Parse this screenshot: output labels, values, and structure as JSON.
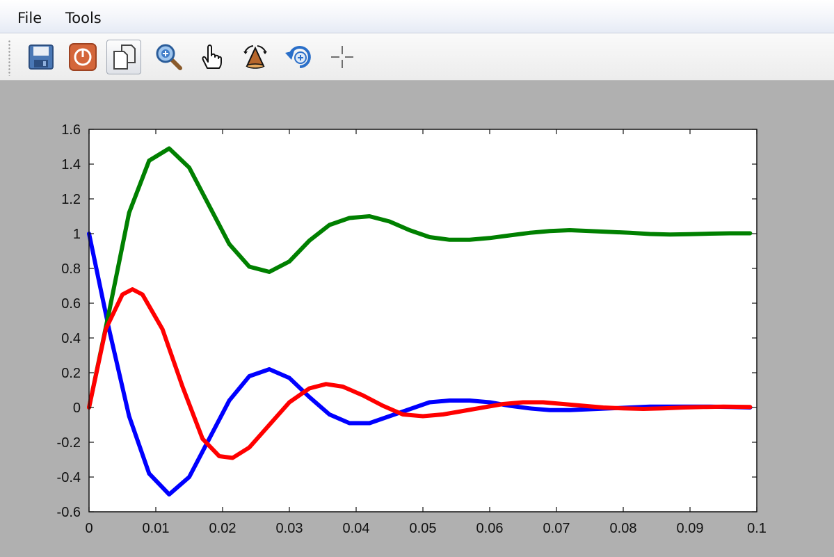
{
  "menu": {
    "file": "File",
    "tools": "Tools"
  },
  "toolbar": [
    {
      "name": "save-icon",
      "active": false
    },
    {
      "name": "power-icon",
      "active": false
    },
    {
      "name": "copy-icon",
      "active": true
    },
    {
      "name": "zoom-icon",
      "active": false
    },
    {
      "name": "pan-hand-icon",
      "active": false
    },
    {
      "name": "rotate-3d-icon",
      "active": false
    },
    {
      "name": "undo-zoom-icon",
      "active": false
    },
    {
      "name": "datatip-crosshair-icon",
      "active": false
    }
  ],
  "chart_data": {
    "type": "line",
    "title": "",
    "xlabel": "",
    "ylabel": "",
    "xlim": [
      0,
      0.1
    ],
    "ylim": [
      -0.6,
      1.6
    ],
    "grid": false,
    "x_ticks": [
      "0",
      "0.01",
      "0.02",
      "0.03",
      "0.04",
      "0.05",
      "0.06",
      "0.07",
      "0.08",
      "0.09",
      "0.1"
    ],
    "y_ticks": [
      "-0.6",
      "-0.4",
      "-0.2",
      "0",
      "0.2",
      "0.4",
      "0.6",
      "0.8",
      "1",
      "1.2",
      "1.4",
      "1.6"
    ],
    "series": [
      {
        "color": "#0000ff",
        "x": [
          0,
          0.003,
          0.006,
          0.009,
          0.012,
          0.015,
          0.018,
          0.021,
          0.024,
          0.027,
          0.03,
          0.033,
          0.036,
          0.039,
          0.042,
          0.045,
          0.048,
          0.051,
          0.054,
          0.057,
          0.06,
          0.063,
          0.066,
          0.069,
          0.072,
          0.075,
          0.078,
          0.081,
          0.084,
          0.087,
          0.09,
          0.093,
          0.096,
          0.099
        ],
        "y": [
          1.0,
          0.45,
          -0.05,
          -0.38,
          -0.5,
          -0.4,
          -0.18,
          0.04,
          0.18,
          0.22,
          0.17,
          0.06,
          -0.04,
          -0.09,
          -0.09,
          -0.05,
          -0.01,
          0.03,
          0.04,
          0.04,
          0.03,
          0.01,
          -0.005,
          -0.015,
          -0.015,
          -0.01,
          -0.005,
          0.0,
          0.005,
          0.005,
          0.005,
          0.005,
          0.003,
          0.0
        ]
      },
      {
        "color": "#008000",
        "x": [
          0,
          0.003,
          0.006,
          0.009,
          0.012,
          0.015,
          0.018,
          0.021,
          0.024,
          0.027,
          0.03,
          0.033,
          0.036,
          0.039,
          0.042,
          0.045,
          0.048,
          0.051,
          0.054,
          0.057,
          0.06,
          0.063,
          0.066,
          0.069,
          0.072,
          0.075,
          0.078,
          0.081,
          0.084,
          0.087,
          0.09,
          0.093,
          0.096,
          0.099
        ],
        "y": [
          0.0,
          0.55,
          1.12,
          1.42,
          1.49,
          1.38,
          1.16,
          0.94,
          0.81,
          0.78,
          0.84,
          0.96,
          1.05,
          1.09,
          1.1,
          1.07,
          1.02,
          0.98,
          0.965,
          0.965,
          0.975,
          0.99,
          1.005,
          1.015,
          1.02,
          1.015,
          1.01,
          1.005,
          0.998,
          0.995,
          0.997,
          1.0,
          1.002,
          1.002
        ]
      },
      {
        "color": "#ff0000",
        "x": [
          0,
          0.0025,
          0.005,
          0.0065,
          0.008,
          0.011,
          0.014,
          0.017,
          0.0195,
          0.0215,
          0.024,
          0.027,
          0.03,
          0.033,
          0.0355,
          0.038,
          0.041,
          0.044,
          0.047,
          0.05,
          0.053,
          0.056,
          0.059,
          0.062,
          0.065,
          0.068,
          0.071,
          0.074,
          0.077,
          0.08,
          0.083,
          0.086,
          0.089,
          0.092,
          0.095,
          0.099
        ],
        "y": [
          0.0,
          0.45,
          0.65,
          0.68,
          0.65,
          0.45,
          0.12,
          -0.18,
          -0.28,
          -0.29,
          -0.23,
          -0.1,
          0.03,
          0.11,
          0.135,
          0.12,
          0.07,
          0.01,
          -0.04,
          -0.05,
          -0.04,
          -0.02,
          0.0,
          0.02,
          0.03,
          0.03,
          0.02,
          0.01,
          0.0,
          -0.005,
          -0.008,
          -0.005,
          0.0,
          0.003,
          0.005,
          0.003
        ]
      }
    ]
  }
}
